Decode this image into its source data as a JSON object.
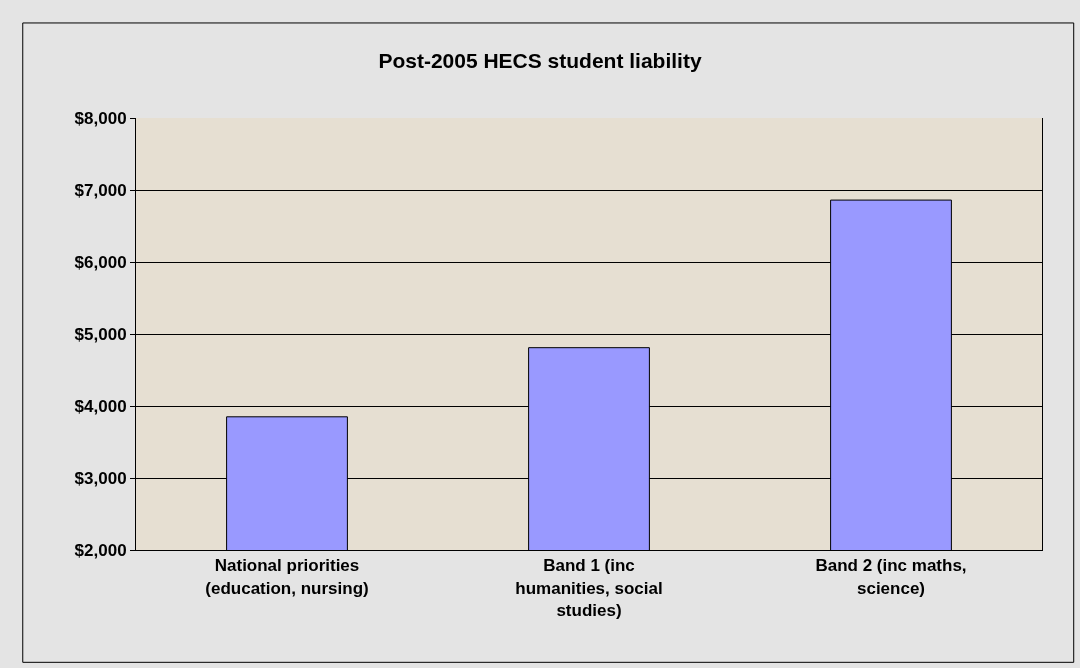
{
  "chart_data": {
    "type": "bar",
    "title": "Post-2005 HECS student liability",
    "categories": [
      "National priorities (education, nursing)",
      "Band 1 (inc humanities, social studies)",
      "Band 2 (inc maths, science)"
    ],
    "values": [
      3850,
      4810,
      6860
    ],
    "color": "#9999ff",
    "ylim": [
      2000,
      8000
    ],
    "yticks": [
      {
        "value": 2000,
        "label": "$2,000"
      },
      {
        "value": 3000,
        "label": "$3,000"
      },
      {
        "value": 4000,
        "label": "$4,000"
      },
      {
        "value": 5000,
        "label": "$5,000"
      },
      {
        "value": 6000,
        "label": "$6,000"
      },
      {
        "value": 7000,
        "label": "$7,000"
      },
      {
        "value": 8000,
        "label": "$8,000"
      }
    ],
    "grid": "y",
    "legend": false
  }
}
